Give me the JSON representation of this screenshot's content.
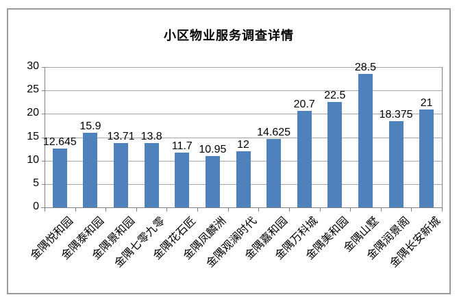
{
  "window": {
    "background": "#ffffff",
    "frame_border_color": "#9a9a9a"
  },
  "chart_data": {
    "type": "bar",
    "title": "小区物业服务调查详情",
    "categories": [
      "金隅悦和园",
      "金隅泰和园",
      "金隅景和园",
      "金隅七零九零",
      "金隅花石匠",
      "金隅凤麟洲",
      "金隅观澜时代",
      "金隅嘉和园",
      "金隅万科城",
      "金隅美和园",
      "金隅山墅",
      "金隅润景阁",
      "金隅长安新城"
    ],
    "values": [
      12.645,
      15.9,
      13.71,
      13.8,
      11.7,
      10.95,
      12,
      14.625,
      20.7,
      22.5,
      28.5,
      18.375,
      21
    ],
    "data_labels": [
      "12.645",
      "15.9",
      "13.71",
      "13.8",
      "11.7",
      "10.95",
      "12",
      "14.625",
      "20.7",
      "22.5",
      "28.5",
      "18.375",
      "21"
    ],
    "xlabel": "",
    "ylabel": "",
    "ylim": [
      0,
      30
    ],
    "ytick_interval": 5,
    "yticks": [
      "0",
      "5",
      "10",
      "15",
      "20",
      "25",
      "30"
    ],
    "grid": true,
    "legend": "none",
    "x_label_rotation_deg": 45,
    "colors": {
      "bar": "#4F81BD",
      "gridline": "#A6A6A6",
      "axis": "#808080",
      "text": "#000000"
    }
  }
}
